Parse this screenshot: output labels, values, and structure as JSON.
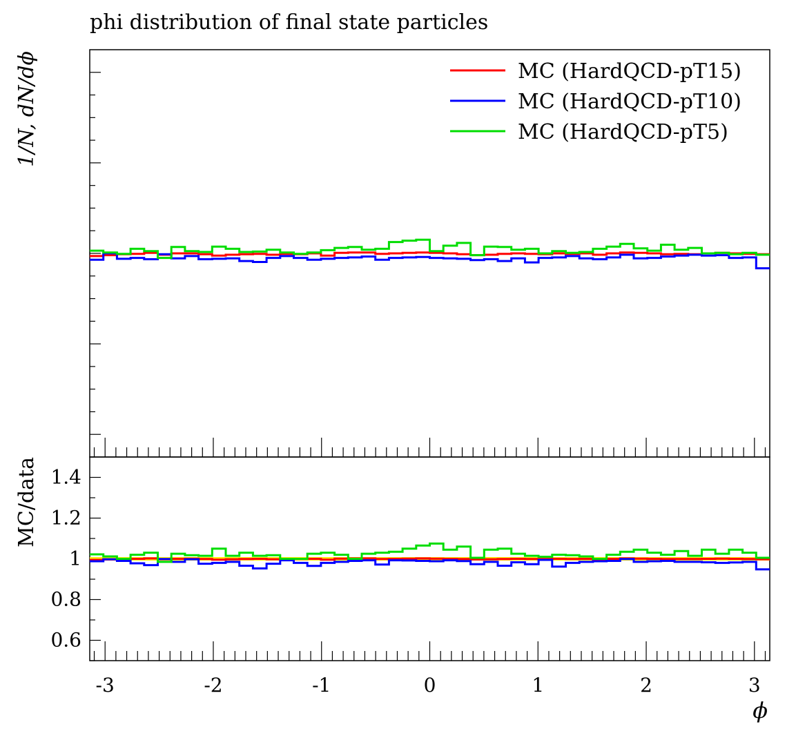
{
  "chart_data": {
    "type": "line",
    "title": "phi distribution of final state particles",
    "ylabel": "1/N, dN/dϕ",
    "ratio_ylabel": "MC/data",
    "xlabel": "ϕ",
    "xlim": [
      -3.1416,
      3.1416
    ],
    "main_ylim": [
      0.115,
      0.205
    ],
    "ratio_ylim": [
      0.5,
      1.5
    ],
    "x_ticks": [
      -3,
      -2,
      -1,
      0,
      1,
      2,
      3
    ],
    "x_tick_labels": [
      "-3",
      "-2",
      "-1",
      "0",
      "1",
      "2",
      "3"
    ],
    "ratio_y_ticks": [
      0.6,
      0.8,
      1.0,
      1.2,
      1.4
    ],
    "ratio_y_tick_labels": [
      "0.6",
      "0.8",
      "1",
      "1.2",
      "1.4"
    ],
    "legend_position": "top-right",
    "reference_line": {
      "value": 1.0,
      "color": "#ffee00"
    },
    "bins": 50,
    "series": [
      {
        "name": "MC (HardQCD-pT15)",
        "color": "#ff0000",
        "values": [
          0.1594,
          0.1596,
          0.1598,
          0.1599,
          0.1601,
          0.1597,
          0.16,
          0.16,
          0.1598,
          0.1595,
          0.1597,
          0.1598,
          0.1599,
          0.1597,
          0.1599,
          0.1598,
          0.16,
          0.1595,
          0.1601,
          0.1602,
          0.1602,
          0.1599,
          0.16,
          0.1601,
          0.1602,
          0.1601,
          0.16,
          0.1598,
          0.1596,
          0.1597,
          0.1599,
          0.16,
          0.1599,
          0.1598,
          0.16,
          0.1599,
          0.16,
          0.1597,
          0.16,
          0.1602,
          0.1601,
          0.16,
          0.1598,
          0.1599,
          0.1598,
          0.16,
          0.1601,
          0.16,
          0.1599,
          0.1598
        ],
        "ratio": [
          0.995,
          0.997,
          0.999,
          1.0,
          1.002,
          0.998,
          1.0,
          1.001,
          0.999,
          0.996,
          0.998,
          0.999,
          1.0,
          0.998,
          0.999,
          0.999,
          1.0,
          0.996,
          1.001,
          1.002,
          1.002,
          0.999,
          1.0,
          1.001,
          1.002,
          1.001,
          1.0,
          0.999,
          0.997,
          0.998,
          0.999,
          1.0,
          0.999,
          0.999,
          1.0,
          0.999,
          1.0,
          0.998,
          1.0,
          1.002,
          1.001,
          1.0,
          0.999,
          0.999,
          0.999,
          1.0,
          1.001,
          1.0,
          0.999,
          0.998
        ]
      },
      {
        "name": "MC (HardQCD-pT10)",
        "color": "#0000ff",
        "values": [
          0.1586,
          0.16,
          0.1588,
          0.159,
          0.1587,
          0.1598,
          0.1589,
          0.1594,
          0.1587,
          0.1588,
          0.1589,
          0.1583,
          0.1581,
          0.159,
          0.1594,
          0.159,
          0.1586,
          0.1588,
          0.159,
          0.1591,
          0.1593,
          0.1586,
          0.159,
          0.1591,
          0.1592,
          0.159,
          0.1589,
          0.1588,
          0.1585,
          0.1587,
          0.1583,
          0.1589,
          0.158,
          0.159,
          0.1591,
          0.1594,
          0.1589,
          0.1587,
          0.1591,
          0.1597,
          0.1589,
          0.159,
          0.1593,
          0.1595,
          0.1597,
          0.1595,
          0.1596,
          0.159,
          0.1591,
          0.1567
        ],
        "ratio": [
          0.988,
          0.998,
          0.99,
          0.978,
          0.969,
          0.999,
          0.985,
          0.998,
          0.976,
          0.98,
          0.985,
          0.966,
          0.953,
          0.976,
          0.993,
          0.98,
          0.965,
          0.98,
          0.985,
          0.99,
          0.993,
          0.972,
          0.993,
          0.992,
          0.99,
          0.988,
          0.993,
          0.989,
          0.974,
          0.985,
          0.966,
          0.983,
          0.974,
          0.995,
          0.962,
          0.98,
          0.985,
          0.988,
          0.99,
          0.999,
          0.985,
          0.988,
          0.99,
          0.985,
          0.985,
          0.983,
          0.98,
          0.982,
          0.985,
          0.948
        ]
      },
      {
        "name": "MC (HardQCD-pT5)",
        "color": "#00dd00",
        "values": [
          0.1606,
          0.1602,
          0.1599,
          0.161,
          0.1605,
          0.159,
          0.1614,
          0.1605,
          0.1603,
          0.1615,
          0.161,
          0.1603,
          0.1604,
          0.1608,
          0.1602,
          0.1599,
          0.1602,
          0.1607,
          0.1612,
          0.1614,
          0.1608,
          0.161,
          0.1625,
          0.1628,
          0.163,
          0.1605,
          0.1617,
          0.1623,
          0.1596,
          0.1615,
          0.1614,
          0.1608,
          0.161,
          0.16,
          0.1605,
          0.1601,
          0.1603,
          0.161,
          0.1615,
          0.1621,
          0.1611,
          0.1606,
          0.1619,
          0.1608,
          0.1612,
          0.16,
          0.1601,
          0.1598,
          0.1601,
          0.1597
        ],
        "ratio": [
          1.022,
          1.012,
          1.0,
          1.02,
          1.03,
          0.985,
          1.025,
          1.018,
          1.015,
          1.05,
          1.015,
          1.03,
          1.015,
          1.018,
          1.0,
          1.0,
          1.025,
          1.03,
          1.02,
          1.0,
          1.025,
          1.03,
          1.035,
          1.05,
          1.065,
          1.075,
          1.045,
          1.06,
          1.005,
          1.045,
          1.05,
          1.025,
          1.015,
          1.01,
          1.02,
          1.018,
          1.012,
          1.0,
          1.02,
          1.035,
          1.045,
          1.03,
          1.02,
          1.038,
          1.015,
          1.045,
          1.025,
          1.045,
          1.03,
          1.005
        ]
      }
    ]
  }
}
